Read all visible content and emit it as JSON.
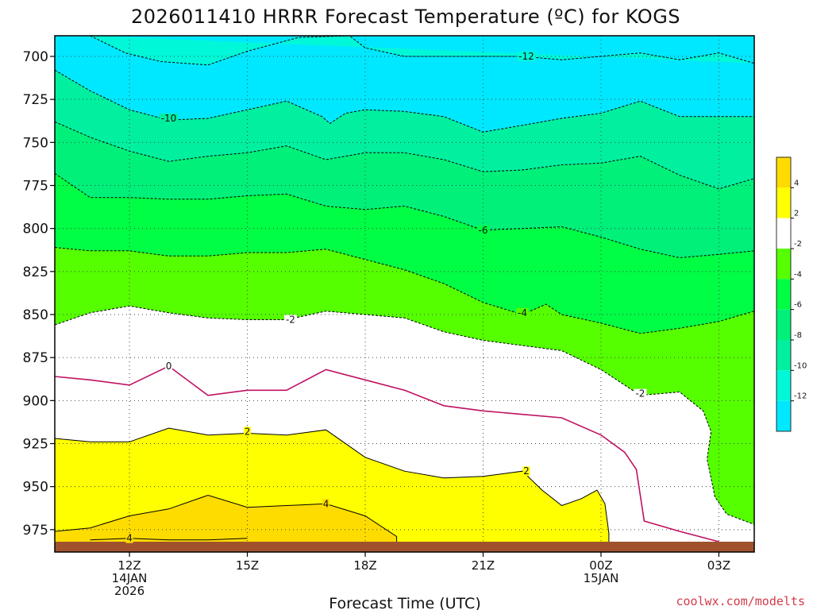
{
  "chart_data": {
    "type": "contour",
    "title": "2026011410 HRRR Forecast Temperature (ºC) for KOGS",
    "xlabel": "Forecast Time (UTC)",
    "ylabel": "",
    "credit": "coolwx.com/modelts",
    "x_ticks": [
      {
        "hour": 12,
        "lines": [
          "12Z",
          "14JAN",
          "2026"
        ]
      },
      {
        "hour": 15,
        "lines": [
          "15Z"
        ]
      },
      {
        "hour": 18,
        "lines": [
          "18Z"
        ]
      },
      {
        "hour": 21,
        "lines": [
          "21Z"
        ]
      },
      {
        "hour": 24,
        "lines": [
          "00Z",
          "15JAN"
        ]
      },
      {
        "hour": 27,
        "lines": [
          "03Z"
        ]
      }
    ],
    "xlim": [
      10.1,
      27.9
    ],
    "ylim": [
      688,
      988
    ],
    "y_axis": "pressure (hPa), inverted",
    "y_ticks": [
      700,
      725,
      750,
      775,
      800,
      825,
      850,
      875,
      900,
      925,
      950,
      975
    ],
    "surface_pressure": 982,
    "colorbar": {
      "bands": [
        {
          "from": 4,
          "to": 6,
          "color": "#ffdc00"
        },
        {
          "from": 2,
          "to": 4,
          "color": "#ffff00"
        },
        {
          "from": -2,
          "to": 2,
          "color": "#ffffff"
        },
        {
          "from": -4,
          "to": -2,
          "color": "#55ff00"
        },
        {
          "from": -6,
          "to": -4,
          "color": "#00ff44"
        },
        {
          "from": -8,
          "to": -6,
          "color": "#00f07a"
        },
        {
          "from": -10,
          "to": -8,
          "color": "#00f0a0"
        },
        {
          "from": -12,
          "to": -10,
          "color": "#00f8d8"
        },
        {
          "from": -14,
          "to": -12,
          "color": "#00e8ff"
        }
      ],
      "tick_labels": [
        "4",
        "2",
        "-2",
        "-4",
        "-6",
        "-8",
        "-10",
        "-12"
      ]
    },
    "contours": [
      {
        "level": -12,
        "style": "dashed",
        "points": [
          [
            11.0,
            688
          ],
          [
            11.9,
            698
          ],
          [
            12.8,
            703
          ],
          [
            14.0,
            705
          ],
          [
            15.0,
            697
          ],
          [
            16.3,
            689
          ],
          [
            17.6,
            688
          ],
          [
            18.0,
            695
          ],
          [
            19.0,
            700
          ],
          [
            20.0,
            700
          ],
          [
            21.0,
            700
          ],
          [
            22.0,
            700
          ],
          [
            23.0,
            702
          ],
          [
            24.5,
            699
          ],
          [
            25.0,
            698
          ],
          [
            26.0,
            702
          ],
          [
            27.0,
            698
          ],
          [
            27.9,
            704
          ]
        ]
      },
      {
        "level": -10,
        "style": "dashed",
        "points": [
          [
            10.1,
            708
          ],
          [
            11.0,
            720
          ],
          [
            12.0,
            731
          ],
          [
            13.0,
            737
          ],
          [
            14.0,
            736
          ],
          [
            15.0,
            731
          ],
          [
            16.0,
            726
          ],
          [
            16.9,
            735
          ],
          [
            17.1,
            739
          ],
          [
            17.5,
            733
          ],
          [
            18.0,
            731
          ],
          [
            19.0,
            732
          ],
          [
            20.0,
            735
          ],
          [
            21.0,
            744
          ],
          [
            22.0,
            740
          ],
          [
            23.0,
            736
          ],
          [
            24.0,
            733
          ],
          [
            25.0,
            726
          ],
          [
            26.0,
            735
          ],
          [
            27.0,
            735
          ],
          [
            27.9,
            735
          ]
        ]
      },
      {
        "level": -8,
        "style": "dashed",
        "points": [
          [
            10.1,
            738
          ],
          [
            11.0,
            747
          ],
          [
            12.0,
            755
          ],
          [
            13.0,
            761
          ],
          [
            14.0,
            758
          ],
          [
            15.0,
            756
          ],
          [
            16.0,
            752
          ],
          [
            17.0,
            760
          ],
          [
            18.0,
            756
          ],
          [
            19.0,
            756
          ],
          [
            20.0,
            760
          ],
          [
            21.0,
            767
          ],
          [
            22.0,
            766
          ],
          [
            23.0,
            763
          ],
          [
            24.0,
            762
          ],
          [
            25.0,
            758
          ],
          [
            26.0,
            769
          ],
          [
            27.0,
            777
          ],
          [
            27.9,
            771
          ]
        ]
      },
      {
        "level": -6,
        "style": "dashed",
        "points": [
          [
            10.1,
            768
          ],
          [
            11.0,
            782
          ],
          [
            12.0,
            782
          ],
          [
            13.0,
            783
          ],
          [
            14.0,
            783
          ],
          [
            15.0,
            781
          ],
          [
            16.0,
            780
          ],
          [
            17.0,
            787
          ],
          [
            18.0,
            789
          ],
          [
            19.0,
            787
          ],
          [
            20.0,
            793
          ],
          [
            21.0,
            801
          ],
          [
            22.0,
            800
          ],
          [
            23.0,
            799
          ],
          [
            24.0,
            805
          ],
          [
            25.0,
            812
          ],
          [
            26.0,
            817
          ],
          [
            27.0,
            815
          ],
          [
            27.9,
            813
          ]
        ]
      },
      {
        "level": -4,
        "style": "dashed",
        "points": [
          [
            10.1,
            811
          ],
          [
            11.0,
            813
          ],
          [
            12.0,
            813
          ],
          [
            13.0,
            816
          ],
          [
            14.0,
            816
          ],
          [
            15.0,
            814
          ],
          [
            16.0,
            814
          ],
          [
            17.0,
            812
          ],
          [
            18.0,
            818
          ],
          [
            19.0,
            824
          ],
          [
            20.0,
            832
          ],
          [
            21.0,
            843
          ],
          [
            22.0,
            850
          ],
          [
            22.6,
            844
          ],
          [
            23.0,
            850
          ],
          [
            24.0,
            855
          ],
          [
            25.0,
            861
          ],
          [
            26.0,
            858
          ],
          [
            27.0,
            854
          ],
          [
            27.9,
            848
          ]
        ]
      },
      {
        "level": -2,
        "style": "dashed",
        "points": [
          [
            10.1,
            856
          ],
          [
            11.0,
            849
          ],
          [
            12.0,
            845
          ],
          [
            13.0,
            849
          ],
          [
            14.0,
            852
          ],
          [
            15.0,
            853
          ],
          [
            16.0,
            853
          ],
          [
            17.0,
            848
          ],
          [
            18.0,
            850
          ],
          [
            19.0,
            852
          ],
          [
            20.0,
            860
          ],
          [
            21.0,
            865
          ],
          [
            22.0,
            868
          ],
          [
            23.0,
            871
          ],
          [
            24.0,
            882
          ],
          [
            25.0,
            897
          ],
          [
            26.0,
            895
          ],
          [
            26.6,
            906
          ],
          [
            26.8,
            918
          ],
          [
            26.7,
            934
          ],
          [
            26.9,
            956
          ],
          [
            27.2,
            966
          ],
          [
            27.9,
            972
          ]
        ]
      },
      {
        "level": 0,
        "style": "solid",
        "color": "#c01060",
        "points": [
          [
            10.1,
            886
          ],
          [
            11.0,
            888
          ],
          [
            12.0,
            891
          ],
          [
            13.0,
            880
          ],
          [
            14.0,
            897
          ],
          [
            15.0,
            894
          ],
          [
            16.0,
            894
          ],
          [
            17.0,
            882
          ],
          [
            18.0,
            888
          ],
          [
            19.0,
            894
          ],
          [
            20.0,
            903
          ],
          [
            21.0,
            906
          ],
          [
            22.0,
            908
          ],
          [
            23.0,
            910
          ],
          [
            24.0,
            920
          ],
          [
            24.6,
            930
          ],
          [
            24.9,
            940
          ],
          [
            25.1,
            970
          ],
          [
            26.0,
            976
          ],
          [
            27.0,
            982
          ]
        ]
      },
      {
        "level": 2,
        "style": "solid",
        "points": [
          [
            10.1,
            922
          ],
          [
            11.0,
            924
          ],
          [
            12.0,
            924
          ],
          [
            13.0,
            916
          ],
          [
            14.0,
            920
          ],
          [
            15.0,
            919
          ],
          [
            16.0,
            920
          ],
          [
            17.0,
            917
          ],
          [
            18.0,
            933
          ],
          [
            19.0,
            941
          ],
          [
            20.0,
            945
          ],
          [
            21.0,
            944
          ],
          [
            22.0,
            941
          ],
          [
            22.5,
            952
          ],
          [
            23.0,
            961
          ],
          [
            23.5,
            957
          ],
          [
            23.9,
            952
          ],
          [
            24.1,
            960
          ],
          [
            24.2,
            977
          ],
          [
            24.2,
            982
          ]
        ]
      },
      {
        "level": 4,
        "style": "solid",
        "points": [
          [
            10.1,
            976
          ],
          [
            11.0,
            974
          ],
          [
            12.0,
            967
          ],
          [
            13.0,
            963
          ],
          [
            14.0,
            955
          ],
          [
            15.0,
            962
          ],
          [
            16.0,
            961
          ],
          [
            17.0,
            960
          ],
          [
            18.0,
            967
          ],
          [
            18.8,
            979
          ],
          [
            18.8,
            982
          ]
        ]
      },
      {
        "level": 4,
        "style": "solid",
        "points": [
          [
            11.0,
            981
          ],
          [
            12.0,
            980
          ],
          [
            13.0,
            981
          ],
          [
            14.0,
            981
          ],
          [
            15.0,
            980
          ]
        ]
      }
    ],
    "contour_labels": [
      {
        "text": "-12",
        "hour": 22.1,
        "p": 700
      },
      {
        "text": "-10",
        "hour": 13.0,
        "p": 736
      },
      {
        "text": "-6",
        "hour": 21.0,
        "p": 801
      },
      {
        "text": "-4",
        "hour": 22.0,
        "p": 849
      },
      {
        "text": "-2",
        "hour": 16.1,
        "p": 853
      },
      {
        "text": "-2",
        "hour": 25.0,
        "p": 896
      },
      {
        "text": "0",
        "hour": 13.0,
        "p": 880
      },
      {
        "text": "2",
        "hour": 15.0,
        "p": 918
      },
      {
        "text": "2",
        "hour": 22.1,
        "p": 941
      },
      {
        "text": "4",
        "hour": 17.0,
        "p": 960
      },
      {
        "text": "4",
        "hour": 12.0,
        "p": 980
      }
    ]
  }
}
